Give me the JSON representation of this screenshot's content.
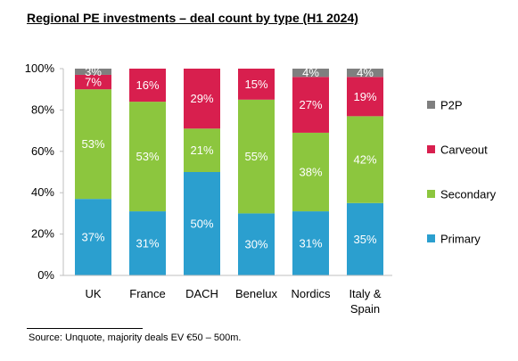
{
  "title": "Regional PE investments – deal count by type (H1 2024)",
  "source": "Source:  Unquote, majority deals EV €50 – 500m.",
  "chart_data": {
    "type": "bar",
    "stacked": true,
    "orientation": "vertical",
    "title": "Regional PE investments – deal count by type (H1 2024)",
    "categories": [
      [
        "UK"
      ],
      [
        "France"
      ],
      [
        "DACH"
      ],
      [
        "Benelux"
      ],
      [
        "Nordics"
      ],
      [
        "Italy &",
        "Spain"
      ]
    ],
    "series": [
      {
        "name": "Primary",
        "color": "#2b9fcf",
        "values": [
          37,
          31,
          50,
          30,
          31,
          35
        ]
      },
      {
        "name": "Secondary",
        "color": "#8cc63e",
        "values": [
          53,
          53,
          21,
          55,
          38,
          42
        ]
      },
      {
        "name": "Carveout",
        "color": "#d81f4e",
        "values": [
          7,
          16,
          29,
          15,
          27,
          19
        ]
      },
      {
        "name": "P2P",
        "color": "#7f7f7f",
        "values": [
          3,
          0,
          0,
          0,
          4,
          4
        ]
      }
    ],
    "data_labels_visible": [
      [
        true,
        true,
        true,
        true,
        true,
        true
      ],
      [
        true,
        true,
        true,
        true,
        true,
        true
      ],
      [
        true,
        true,
        true,
        true,
        true,
        true
      ],
      [
        true,
        false,
        false,
        false,
        true,
        true
      ]
    ],
    "y_ticks": [
      "0%",
      "20%",
      "40%",
      "60%",
      "80%",
      "100%"
    ],
    "ylim": [
      0,
      100
    ],
    "y_unit": "%",
    "grid": false,
    "legend_position": "right",
    "legend_order": [
      "P2P",
      "Carveout",
      "Secondary",
      "Primary"
    ]
  }
}
